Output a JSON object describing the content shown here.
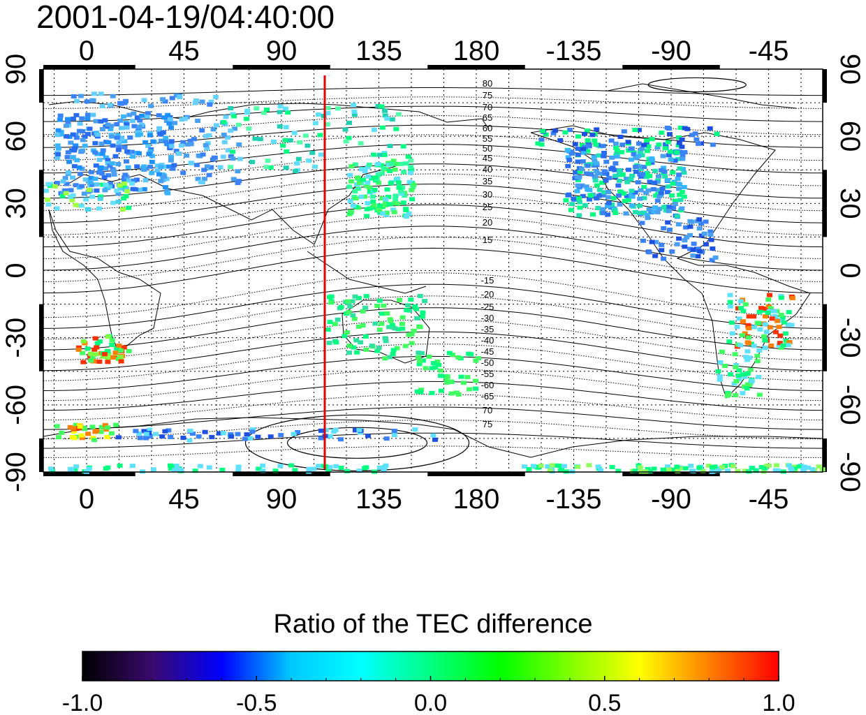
{
  "title": "2001-04-19/04:40:00",
  "map": {
    "lon_range": [
      -20,
      340
    ],
    "lat_range": [
      -90,
      90
    ],
    "lon_ticks": [
      "0",
      "45",
      "90",
      "135",
      "180",
      "-135",
      "-90",
      "-45"
    ],
    "lon_tick_values": [
      0,
      45,
      90,
      135,
      180,
      225,
      270,
      315
    ],
    "lat_ticks_left": [
      "90",
      "60",
      "30",
      "0",
      "-30",
      "-60",
      "-90"
    ],
    "lat_ticks_right": [
      "90",
      "60",
      "30",
      "0",
      "-30",
      "-60",
      "-90"
    ],
    "lat_tick_values": [
      90,
      60,
      30,
      0,
      -30,
      -60,
      -90
    ],
    "grid": "dotted",
    "meridian_line": {
      "lon": 110,
      "color": "#e00000"
    },
    "contour_labels_north": [
      "80",
      "75",
      "70",
      "65",
      "60",
      "55",
      "50",
      "45",
      "40",
      "35",
      "30",
      "25",
      "20",
      "15"
    ],
    "contour_labels_south": [
      "-15",
      "-20",
      "-25",
      "-30",
      "-35",
      "-40",
      "-45",
      "-50",
      "-55",
      "-60",
      "-65",
      "70",
      "75"
    ]
  },
  "colorbar": {
    "title": "Ratio of the TEC difference",
    "tick_labels": [
      "-1.0",
      "-0.5",
      "0.0",
      "0.5",
      "1.0"
    ],
    "tick_values": [
      -1.0,
      -0.5,
      0.0,
      0.5,
      1.0
    ],
    "colors": [
      "#000000",
      "#3a0a6e",
      "#0000ff",
      "#00c8ff",
      "#00ffff",
      "#00ff80",
      "#00ff00",
      "#80ff00",
      "#ffff00",
      "#ff8000",
      "#ff0000"
    ]
  }
}
